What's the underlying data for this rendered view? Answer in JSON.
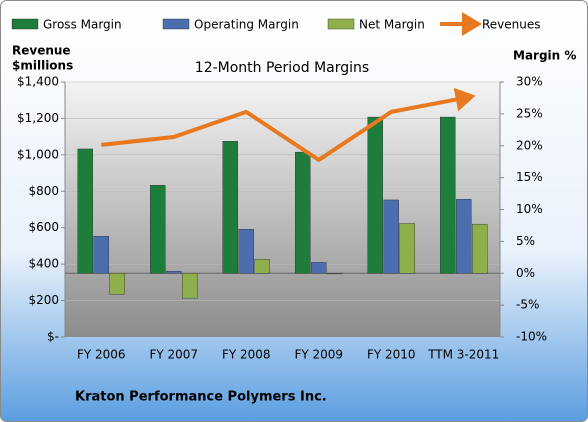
{
  "chart_data": {
    "type": "bar-line",
    "title": "12-Month Period Margins",
    "ylabel": [
      "Revenue",
      "$millions"
    ],
    "y2label": "Margin %",
    "source": "Kraton Performance Polymers Inc.",
    "categories": [
      "FY 2006",
      "FY 2007",
      "FY 2008",
      "FY 2009",
      "FY 2010",
      "TTM 3-2011"
    ],
    "series": [
      {
        "name": "Gross Margin",
        "color": "#1f7d3c",
        "axis": "y2",
        "kind": "bar",
        "values": [
          19.5,
          13.8,
          20.7,
          19,
          24.5,
          24.5
        ]
      },
      {
        "name": "Operating Margin",
        "color": "#4a6eae",
        "axis": "y2",
        "kind": "bar",
        "values": [
          5.8,
          0.3,
          6.9,
          1.7,
          11.5,
          11.6
        ]
      },
      {
        "name": "Net Margin",
        "color": "#8fae4c",
        "axis": "y2",
        "kind": "bar",
        "values": [
          -3.3,
          -3.9,
          2.2,
          -0.1,
          7.8,
          7.7
        ]
      },
      {
        "name": "Revenues",
        "color": "#e8791f",
        "axis": "y",
        "kind": "line",
        "values": [
          1055,
          1098,
          1236,
          972,
          1236,
          1312
        ]
      }
    ],
    "ylim": [
      0,
      1400
    ],
    "yticks": [
      {
        "value": 0,
        "label": "$-"
      },
      {
        "value": 200,
        "label": "$200"
      },
      {
        "value": 400,
        "label": "$400"
      },
      {
        "value": 600,
        "label": "$600"
      },
      {
        "value": 800,
        "label": "$800"
      },
      {
        "value": 1000,
        "label": "$1,000"
      },
      {
        "value": 1200,
        "label": "$1,200"
      },
      {
        "value": 1400,
        "label": "$1,400"
      }
    ],
    "y2lim": [
      -10,
      30
    ],
    "y2ticks": [
      {
        "value": -10,
        "label": "-10%"
      },
      {
        "value": -5,
        "label": "-5%"
      },
      {
        "value": 0,
        "label": "0%"
      },
      {
        "value": 5,
        "label": "5%"
      },
      {
        "value": 10,
        "label": "10%"
      },
      {
        "value": 15,
        "label": "15%"
      },
      {
        "value": 20,
        "label": "20%"
      },
      {
        "value": 25,
        "label": "25%"
      },
      {
        "value": 30,
        "label": "30%"
      }
    ],
    "grid": true
  }
}
